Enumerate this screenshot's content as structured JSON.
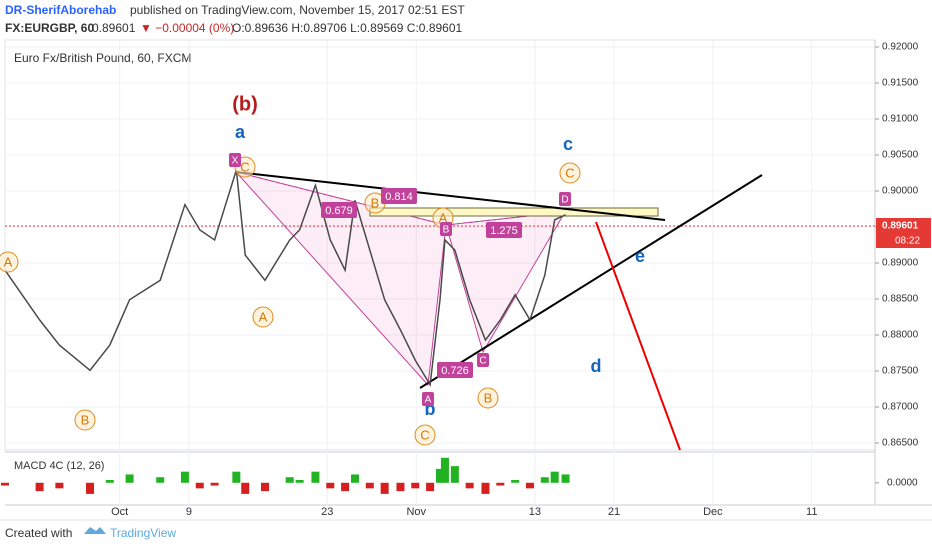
{
  "header": {
    "author": "DR-SherifAborehab",
    "published": "published on TradingView.com, November 15, 2017 02:51 EST",
    "symbol": "FX:EURGBP, 60",
    "last": "0.89601",
    "change": "▼ −0.00004 (0%)",
    "ohlc": "O:0.89636 H:0.89706 L:0.89569 C:0.89601"
  },
  "chart_data": {
    "type": "line",
    "title": "Euro Fx/British Pound, 60, FXCM",
    "x": [
      263.4,
      266.9,
      268.9,
      272.0,
      274.0,
      276.0,
      279.1,
      281.6,
      283.1,
      284.6,
      286.8,
      287.7,
      289.7,
      292.2,
      293.2,
      294.8,
      296.3,
      297.8,
      298.8,
      300.3,
      301.8,
      303.4,
      304.9,
      306.4,
      307.4,
      307.9,
      308.9,
      310.4,
      312.0,
      313.5,
      315.0,
      316.5,
      318.0,
      319.0,
      320.1
    ],
    "series": [
      {
        "color": "#4a4a4a",
        "values": [
          0.889,
          0.8821,
          0.8786,
          0.8751,
          0.8786,
          0.8849,
          0.8876,
          0.8981,
          0.8946,
          0.8932,
          0.9029,
          0.8911,
          0.8876,
          0.8932,
          0.8946,
          0.9008,
          0.8932,
          0.889,
          0.8987,
          0.8918,
          0.8849,
          0.8807,
          0.8765,
          0.8731,
          0.8849,
          0.8932,
          0.8918,
          0.8849,
          0.8793,
          0.8821,
          0.8856,
          0.8821,
          0.8883,
          0.896,
          0.8967
        ]
      }
    ],
    "xlim": [
      263.4,
      351.4
    ],
    "ylim": [
      0.86403,
      0.92097
    ],
    "xticks": [
      {
        "value": 275,
        "label": "Oct"
      },
      {
        "value": 282,
        "label": "9"
      },
      {
        "value": 296,
        "label": "23"
      },
      {
        "value": 305,
        "label": "Nov"
      },
      {
        "value": 317,
        "label": "13"
      },
      {
        "value": 325,
        "label": "21"
      },
      {
        "value": 335,
        "label": "Dec"
      },
      {
        "value": 345,
        "label": "11"
      }
    ],
    "yticks": [
      {
        "value": 0.92,
        "label": "0.92000"
      },
      {
        "value": 0.915,
        "label": "0.91500"
      },
      {
        "value": 0.91,
        "label": "0.91000"
      },
      {
        "value": 0.905,
        "label": "0.90500"
      },
      {
        "value": 0.9,
        "label": "0.90000"
      },
      {
        "value": 0.895,
        "label": "0.89500"
      },
      {
        "value": 0.89,
        "label": "0.89000"
      },
      {
        "value": 0.885,
        "label": "0.88500"
      },
      {
        "value": 0.88,
        "label": "0.88000"
      },
      {
        "value": 0.875,
        "label": "0.87500"
      },
      {
        "value": 0.87,
        "label": "0.87000"
      },
      {
        "value": 0.865,
        "label": "0.86500"
      }
    ],
    "grid": true,
    "price_label": "0.89601",
    "countdown": "08:22",
    "annotations": {
      "waves": [
        "(b)",
        "a",
        "c",
        "e",
        "d",
        "b"
      ],
      "points": [
        "C",
        "A",
        "B",
        "B",
        "A",
        "B",
        "C",
        "C",
        "A"
      ],
      "pattern": [
        "X",
        "A",
        "B",
        "C",
        "D"
      ],
      "ratios": [
        "0.814",
        "0.679",
        "1.275",
        "0.726"
      ]
    }
  },
  "indicator": {
    "title": "MACD 4C (12, 26)",
    "up_color": "#22b322",
    "down_color": "#d62020",
    "ylim": [
      -0.0008,
      0.001
    ],
    "yticks": [
      {
        "value": 0,
        "label": "0.0000"
      }
    ],
    "values": [
      -0.0001,
      -0.0003,
      -0.0002,
      -0.0004,
      0.0001,
      0.0003,
      0.0002,
      0.0004,
      -0.0002,
      -0.0001,
      0.0004,
      -0.0004,
      -0.0003,
      0.0002,
      0.0001,
      0.0004,
      -0.0002,
      -0.0003,
      0.0003,
      -0.0002,
      -0.0004,
      -0.0003,
      -0.0002,
      -0.0003,
      0.0005,
      0.0009,
      0.0006,
      -0.0002,
      -0.0004,
      -0.0001,
      0.0001,
      -0.0002,
      0.0002,
      0.0004,
      0.0003
    ]
  },
  "footer": {
    "created": "Created with",
    "brand": "TradingView"
  }
}
